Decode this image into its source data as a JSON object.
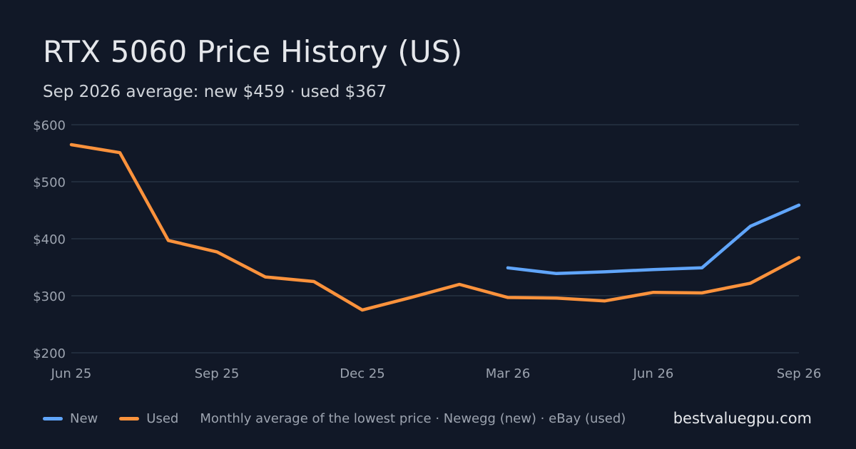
{
  "header": {
    "title": "RTX 5060 Price History (US)",
    "subtitle": "Sep 2026 average: new $459 · used $367"
  },
  "footer": {
    "source_note": "Monthly average of the lowest price · Newegg (new) · eBay (used)",
    "site": "bestvaluegpu.com"
  },
  "chart_data": {
    "type": "line",
    "x": [
      "2025-06",
      "2025-07",
      "2025-08",
      "2025-09",
      "2025-10",
      "2025-11",
      "2025-12",
      "2026-01",
      "2026-02",
      "2026-03",
      "2026-04",
      "2026-05",
      "2026-06",
      "2026-07",
      "2026-08",
      "2026-09"
    ],
    "x_ticks": [
      {
        "value": "2025-06",
        "label": "Jun 25"
      },
      {
        "value": "2025-09",
        "label": "Sep 25"
      },
      {
        "value": "2025-12",
        "label": "Dec 25"
      },
      {
        "value": "2026-03",
        "label": "Mar 26"
      },
      {
        "value": "2026-06",
        "label": "Jun 26"
      },
      {
        "value": "2026-09",
        "label": "Sep 26"
      }
    ],
    "y_ticks": [
      {
        "value": 200,
        "label": "$200"
      },
      {
        "value": 300,
        "label": "$300"
      },
      {
        "value": 400,
        "label": "$400"
      },
      {
        "value": 500,
        "label": "$500"
      },
      {
        "value": 600,
        "label": "$600"
      }
    ],
    "ylim": [
      200,
      600
    ],
    "grid": true,
    "legend_position": "bottom-left",
    "series": [
      {
        "name": "New",
        "color": "#60a5fa",
        "values": [
          null,
          null,
          null,
          null,
          null,
          null,
          null,
          null,
          null,
          349,
          339,
          342,
          346,
          349,
          422,
          459
        ]
      },
      {
        "name": "Used",
        "color": "#fb923c",
        "values": [
          565,
          551,
          397,
          377,
          333,
          325,
          275,
          297,
          320,
          297,
          296,
          291,
          306,
          305,
          322,
          367
        ]
      }
    ]
  }
}
